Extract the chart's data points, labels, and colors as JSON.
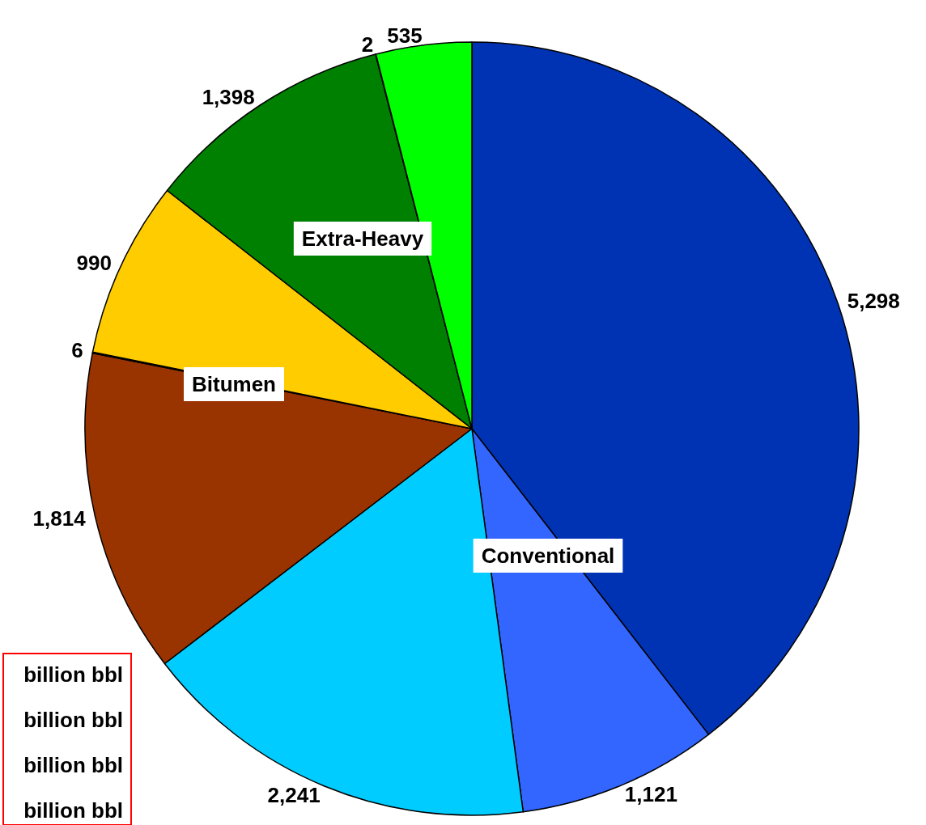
{
  "chart_data": {
    "type": "pie",
    "categories": [
      null,
      null,
      null,
      null,
      null,
      null,
      null,
      null,
      null
    ],
    "values": [
      5298,
      1121,
      2241,
      1814,
      6,
      990,
      1398,
      2,
      535
    ],
    "colors": [
      "#0033b3",
      "#3366ff",
      "#00ccff",
      "#993300",
      "#ff0000",
      "#ffcc00",
      "#008000",
      "#ff0000",
      "#00ff00"
    ],
    "value_labels": [
      "5,298",
      "1,121",
      "2,241",
      "1,814",
      "6",
      "990",
      "1,398",
      "2",
      "535"
    ],
    "annotations": [
      "Conventional",
      "Bitumen",
      "Extra-Heavy",
      "billion bbl",
      "billion bbl",
      "billion bbl",
      "billion bbl"
    ],
    "legend": false
  }
}
